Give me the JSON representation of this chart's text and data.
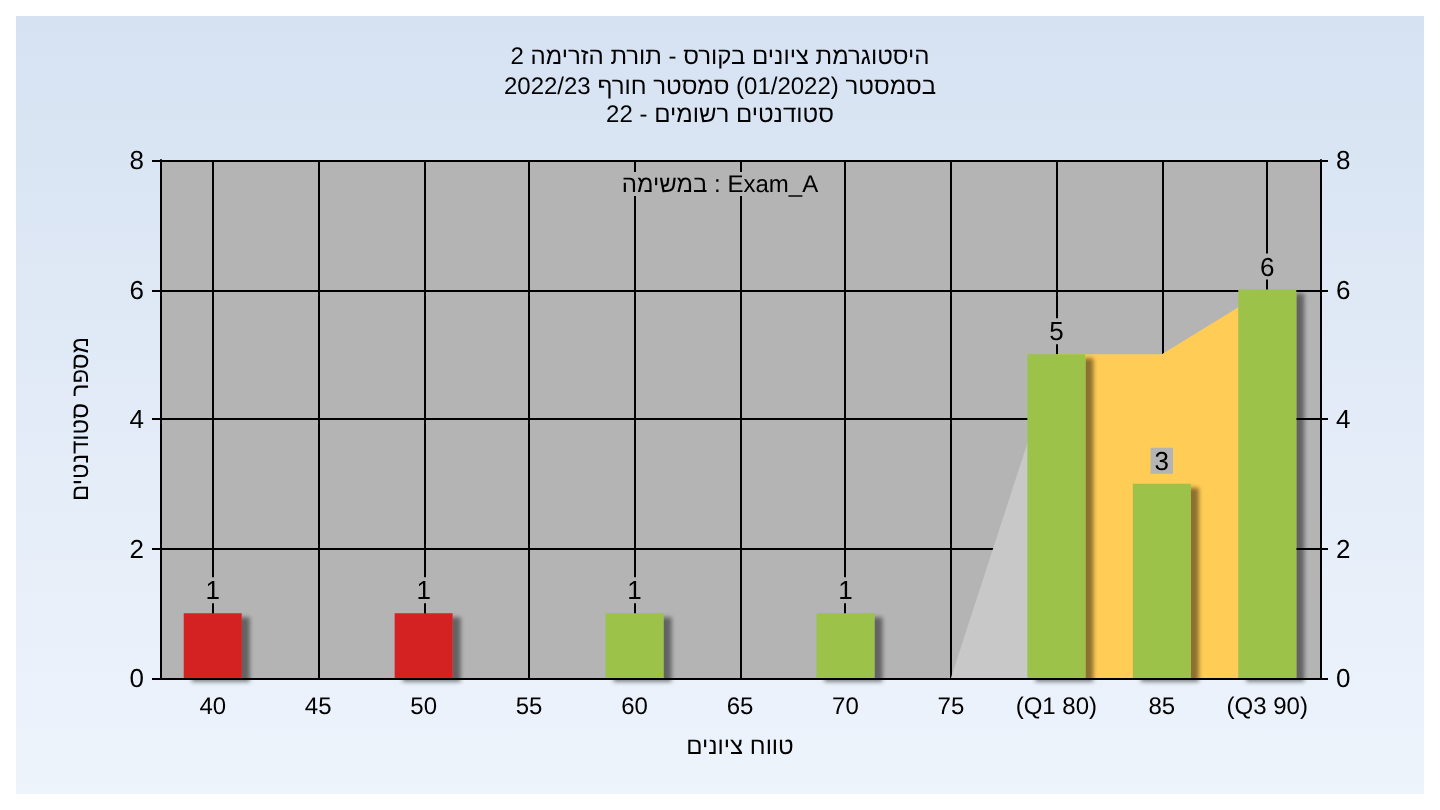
{
  "chart_data": {
    "type": "bar",
    "title": "היסטוגרמת ציונים בקורס - תורת הזרימה 2",
    "subtitle": "בסמסטר (01/2022) סמסטר חורף 2022/23\nסטודנטים רשומים - 22",
    "xlabel": "טווח ציונים",
    "ylabel": "מספר סטודנטים",
    "annotations": [
      "במשימה : Exam_A"
    ],
    "categories": [
      "40",
      "45",
      "50",
      "55",
      "60",
      "65",
      "70",
      "75",
      "(Q1 80)",
      "85",
      "(Q3 90)"
    ],
    "series": [
      {
        "type": "area",
        "color": "#c8c8c8",
        "values": [
          null,
          null,
          null,
          null,
          null,
          null,
          null,
          0,
          5,
          null,
          null
        ]
      },
      {
        "type": "area",
        "color": "#ffcc55",
        "values": [
          null,
          null,
          null,
          null,
          null,
          null,
          null,
          null,
          5,
          5,
          6
        ]
      },
      {
        "colors": [
          "#d42424",
          "#d42424",
          "#d42424",
          "#d42424",
          "#9cc24a",
          "#9cc24a",
          "#9cc24a",
          "#9cc24a",
          "#9cc24a",
          "#9cc24a",
          "#9cc24a"
        ],
        "values": [
          1,
          0,
          1,
          0,
          1,
          0,
          1,
          0,
          5,
          3,
          6
        ],
        "value_labels": [
          "1",
          null,
          "1",
          null,
          "1",
          null,
          "1",
          null,
          "5",
          "3",
          "6"
        ]
      }
    ],
    "ylim": [
      0,
      8
    ],
    "yticks": [
      0,
      2,
      4,
      6,
      8
    ],
    "y2lim": [
      0,
      8
    ],
    "y2ticks": [
      0,
      2,
      4,
      6,
      8
    ],
    "grid": true
  }
}
